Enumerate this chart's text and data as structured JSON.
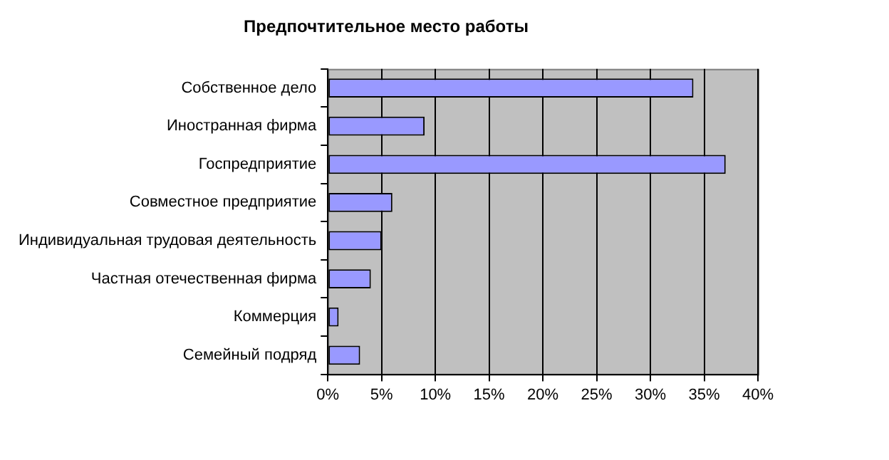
{
  "chart_data": {
    "type": "bar",
    "orientation": "horizontal",
    "title": "Предпочтительное место работы",
    "categories": [
      "Собственное дело",
      "Иностранная фирма",
      "Госпредприятие",
      "Совместное предприятие",
      "Индивидуальная трудовая деятельность",
      "Частная отечественная фирма",
      "Коммерция",
      "Семейный подряд"
    ],
    "values": [
      34,
      9,
      37,
      6,
      5,
      4,
      1,
      3
    ],
    "color": "#9999ff",
    "xlim": [
      0,
      40
    ],
    "xticks": [
      {
        "value": 0,
        "label": "0%"
      },
      {
        "value": 5,
        "label": "5%"
      },
      {
        "value": 10,
        "label": "10%"
      },
      {
        "value": 15,
        "label": "15%"
      },
      {
        "value": 20,
        "label": "20%"
      },
      {
        "value": 25,
        "label": "25%"
      },
      {
        "value": 30,
        "label": "30%"
      },
      {
        "value": 35,
        "label": "35%"
      },
      {
        "value": 40,
        "label": "40%"
      }
    ],
    "grid": "x",
    "legend": false
  }
}
